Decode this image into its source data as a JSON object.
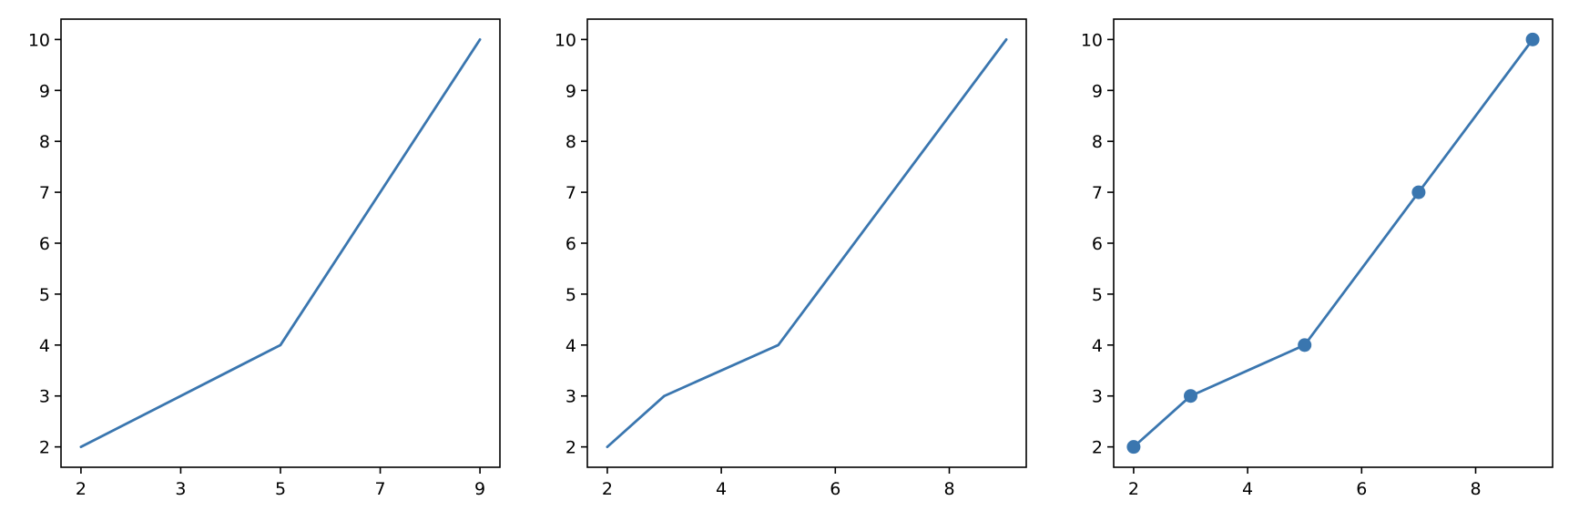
{
  "chart_data": [
    {
      "type": "line",
      "title": "",
      "xlabel": "",
      "ylabel": "",
      "x": [
        2,
        3,
        5,
        7,
        9
      ],
      "y": [
        2,
        3,
        4,
        7,
        10
      ],
      "xlim": [
        1.65,
        9.35
      ],
      "ylim": [
        1.6,
        10.4
      ],
      "xticks": [
        2,
        3,
        5,
        7,
        9
      ],
      "xtick_scale": "categorical",
      "yticks": [
        2,
        3,
        4,
        5,
        6,
        7,
        8,
        9,
        10
      ],
      "markers": false,
      "color": "#3a76af",
      "grid": false
    },
    {
      "type": "line",
      "title": "",
      "xlabel": "",
      "ylabel": "",
      "x": [
        2,
        3,
        5,
        7,
        9
      ],
      "y": [
        2,
        3,
        4,
        7,
        10
      ],
      "xlim": [
        1.65,
        9.35
      ],
      "ylim": [
        1.6,
        10.4
      ],
      "xticks": [
        2,
        4,
        6,
        8
      ],
      "xtick_scale": "linear",
      "yticks": [
        2,
        3,
        4,
        5,
        6,
        7,
        8,
        9,
        10
      ],
      "markers": false,
      "color": "#3a76af",
      "grid": false
    },
    {
      "type": "line",
      "title": "",
      "xlabel": "",
      "ylabel": "",
      "x": [
        2,
        3,
        5,
        7,
        9
      ],
      "y": [
        2,
        3,
        4,
        7,
        10
      ],
      "xlim": [
        1.65,
        9.35
      ],
      "ylim": [
        1.6,
        10.4
      ],
      "xticks": [
        2,
        4,
        6,
        8
      ],
      "xtick_scale": "linear",
      "yticks": [
        2,
        3,
        4,
        5,
        6,
        7,
        8,
        9,
        10
      ],
      "markers": true,
      "color": "#3a76af",
      "grid": false
    }
  ]
}
